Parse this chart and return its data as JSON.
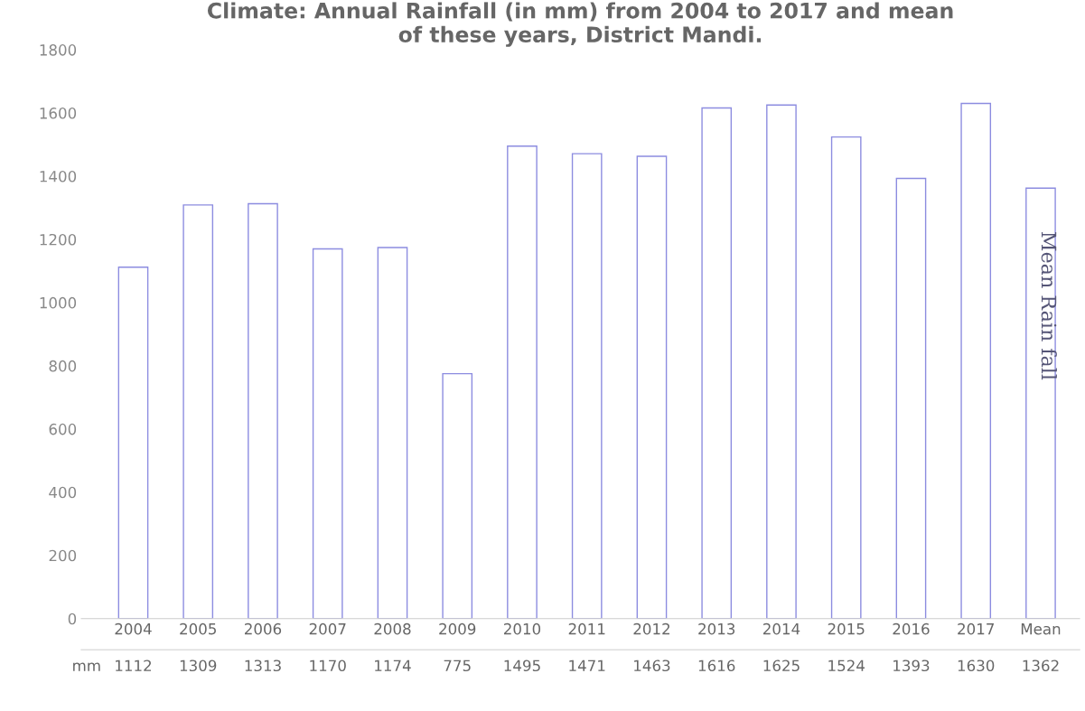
{
  "chart_data": {
    "type": "bar",
    "title": "Climate: Annual Rainfall (in mm) from 2004 to 2017 and mean\nof these years, District Mandi.",
    "categories": [
      "2004",
      "2005",
      "2006",
      "2007",
      "2008",
      "2009",
      "2010",
      "2011",
      "2012",
      "2013",
      "2014",
      "2015",
      "2016",
      "2017",
      "Mean"
    ],
    "series": [
      {
        "name": "mm",
        "color": "#8c8ce0",
        "values": [
          1112,
          1309,
          1313,
          1170,
          1174,
          775,
          1495,
          1471,
          1463,
          1616,
          1625,
          1524,
          1393,
          1630,
          1362
        ]
      }
    ],
    "ylim": [
      0,
      1800
    ],
    "yticks": [
      0,
      200,
      400,
      600,
      800,
      1000,
      1200,
      1400,
      1600,
      1800
    ],
    "data_labels": true,
    "grid": false,
    "legend": false,
    "annotations": [
      "Mean Rain fall"
    ]
  }
}
